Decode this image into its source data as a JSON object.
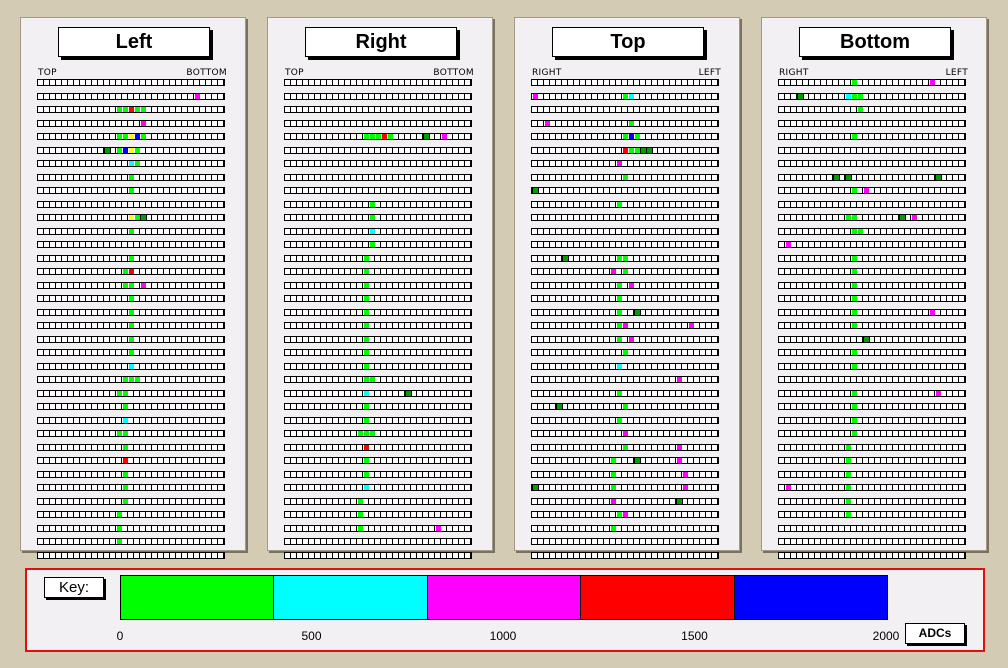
{
  "panels": [
    {
      "title": "Left",
      "label_left": "TOP",
      "label_right": "BOTTOM",
      "hits": [
        [],
        [
          [
            26,
            "m"
          ]
        ],
        [
          [
            13,
            "g"
          ],
          [
            14,
            "g"
          ],
          [
            15,
            "r"
          ],
          [
            16,
            "g"
          ],
          [
            17,
            "g"
          ]
        ],
        [
          [
            17,
            "m"
          ]
        ],
        [
          [
            13,
            "g"
          ],
          [
            14,
            "g"
          ],
          [
            15,
            "y"
          ],
          [
            16,
            "b"
          ],
          [
            17,
            "g"
          ]
        ],
        [
          [
            11,
            "G"
          ],
          [
            13,
            "g"
          ],
          [
            14,
            "b"
          ],
          [
            15,
            "y"
          ],
          [
            16,
            "g"
          ]
        ],
        [
          [
            15,
            "c"
          ],
          [
            16,
            "g"
          ]
        ],
        [
          [
            15,
            "g"
          ]
        ],
        [
          [
            15,
            "g"
          ]
        ],
        [],
        [
          [
            15,
            "y"
          ],
          [
            16,
            "g"
          ],
          [
            17,
            "G"
          ]
        ],
        [
          [
            15,
            "g"
          ]
        ],
        [],
        [
          [
            15,
            "g"
          ]
        ],
        [
          [
            14,
            "g"
          ],
          [
            15,
            "r"
          ]
        ],
        [
          [
            14,
            "g"
          ],
          [
            15,
            "g"
          ],
          [
            17,
            "m"
          ]
        ],
        [
          [
            15,
            "g"
          ]
        ],
        [
          [
            15,
            "g"
          ]
        ],
        [
          [
            15,
            "g"
          ]
        ],
        [
          [
            15,
            "g"
          ]
        ],
        [
          [
            15,
            "g"
          ]
        ],
        [
          [
            15,
            "c"
          ]
        ],
        [
          [
            14,
            "g"
          ],
          [
            15,
            "g"
          ],
          [
            16,
            "g"
          ]
        ],
        [
          [
            13,
            "g"
          ],
          [
            14,
            "g"
          ]
        ],
        [
          [
            14,
            "g"
          ]
        ],
        [
          [
            14,
            "c"
          ]
        ],
        [
          [
            13,
            "g"
          ],
          [
            14,
            "g"
          ]
        ],
        [
          [
            14,
            "g"
          ]
        ],
        [
          [
            14,
            "r"
          ]
        ],
        [
          [
            14,
            "g"
          ]
        ],
        [
          [
            14,
            "g"
          ]
        ],
        [
          [
            14,
            "g"
          ]
        ],
        [
          [
            13,
            "g"
          ]
        ],
        [
          [
            13,
            "g"
          ]
        ],
        [
          [
            13,
            "g"
          ]
        ],
        []
      ]
    },
    {
      "title": "Right",
      "label_left": "TOP",
      "label_right": "BOTTOM",
      "hits": [
        [],
        [],
        [],
        [],
        [
          [
            13,
            "g"
          ],
          [
            14,
            "g"
          ],
          [
            15,
            "g"
          ],
          [
            16,
            "r"
          ],
          [
            17,
            "g"
          ],
          [
            23,
            "G"
          ],
          [
            26,
            "m"
          ]
        ],
        [],
        [],
        [],
        [],
        [
          [
            14,
            "g"
          ]
        ],
        [
          [
            14,
            "g"
          ]
        ],
        [
          [
            14,
            "c"
          ]
        ],
        [
          [
            14,
            "g"
          ]
        ],
        [
          [
            13,
            "g"
          ]
        ],
        [
          [
            13,
            "g"
          ]
        ],
        [
          [
            13,
            "g"
          ]
        ],
        [
          [
            13,
            "g"
          ]
        ],
        [
          [
            13,
            "g"
          ]
        ],
        [
          [
            13,
            "g"
          ]
        ],
        [
          [
            13,
            "g"
          ]
        ],
        [
          [
            13,
            "g"
          ]
        ],
        [
          [
            13,
            "g"
          ]
        ],
        [
          [
            13,
            "g"
          ],
          [
            14,
            "g"
          ]
        ],
        [
          [
            13,
            "c"
          ],
          [
            20,
            "G"
          ]
        ],
        [
          [
            13,
            "g"
          ]
        ],
        [
          [
            13,
            "g"
          ]
        ],
        [
          [
            12,
            "g"
          ],
          [
            13,
            "g"
          ],
          [
            14,
            "g"
          ]
        ],
        [
          [
            13,
            "r"
          ]
        ],
        [
          [
            13,
            "g"
          ]
        ],
        [
          [
            13,
            "g"
          ]
        ],
        [
          [
            13,
            "c"
          ]
        ],
        [
          [
            12,
            "g"
          ]
        ],
        [
          [
            12,
            "g"
          ]
        ],
        [
          [
            12,
            "g"
          ],
          [
            25,
            "m"
          ]
        ],
        [],
        []
      ]
    },
    {
      "title": "Top",
      "label_left": "RIGHT",
      "label_right": "LEFT",
      "hits": [
        [],
        [
          [
            0,
            "m"
          ],
          [
            16,
            "c"
          ],
          [
            15,
            "g"
          ]
        ],
        [],
        [
          [
            2,
            "m"
          ],
          [
            16,
            "g"
          ]
        ],
        [
          [
            15,
            "g"
          ],
          [
            16,
            "b"
          ],
          [
            17,
            "g"
          ]
        ],
        [
          [
            15,
            "r"
          ],
          [
            16,
            "g"
          ],
          [
            17,
            "g"
          ],
          [
            18,
            "G"
          ],
          [
            19,
            "G"
          ]
        ],
        [
          [
            14,
            "m"
          ]
        ],
        [
          [
            15,
            "g"
          ]
        ],
        [
          [
            0,
            "G"
          ]
        ],
        [
          [
            14,
            "g"
          ]
        ],
        [],
        [],
        [],
        [
          [
            5,
            "G"
          ],
          [
            14,
            "g"
          ],
          [
            15,
            "g"
          ]
        ],
        [
          [
            13,
            "m"
          ],
          [
            15,
            "g"
          ]
        ],
        [
          [
            14,
            "g"
          ],
          [
            16,
            "m"
          ]
        ],
        [
          [
            14,
            "g"
          ]
        ],
        [
          [
            14,
            "g"
          ],
          [
            17,
            "G"
          ]
        ],
        [
          [
            14,
            "g"
          ],
          [
            15,
            "m"
          ],
          [
            26,
            "m"
          ]
        ],
        [
          [
            14,
            "g"
          ],
          [
            16,
            "m"
          ]
        ],
        [
          [
            15,
            "g"
          ]
        ],
        [
          [
            14,
            "c"
          ]
        ],
        [
          [
            24,
            "m"
          ]
        ],
        [
          [
            14,
            "g"
          ]
        ],
        [
          [
            4,
            "G"
          ],
          [
            15,
            "g"
          ]
        ],
        [
          [
            14,
            "g"
          ]
        ],
        [
          [
            15,
            "m"
          ]
        ],
        [
          [
            15,
            "g"
          ],
          [
            24,
            "m"
          ]
        ],
        [
          [
            13,
            "g"
          ],
          [
            17,
            "G"
          ],
          [
            24,
            "m"
          ]
        ],
        [
          [
            13,
            "g"
          ],
          [
            25,
            "m"
          ]
        ],
        [
          [
            0,
            "G"
          ],
          [
            13,
            "g"
          ],
          [
            25,
            "m"
          ]
        ],
        [
          [
            13,
            "m"
          ],
          [
            24,
            "G"
          ]
        ],
        [
          [
            14,
            "g"
          ],
          [
            15,
            "m"
          ]
        ],
        [
          [
            13,
            "g"
          ]
        ],
        [],
        []
      ]
    },
    {
      "title": "Bottom",
      "label_left": "RIGHT",
      "label_right": "LEFT",
      "hits": [
        [
          [
            12,
            "g"
          ],
          [
            25,
            "m"
          ]
        ],
        [
          [
            3,
            "G"
          ],
          [
            11,
            "c"
          ],
          [
            12,
            "g"
          ],
          [
            13,
            "g"
          ]
        ],
        [
          [
            13,
            "g"
          ]
        ],
        [],
        [
          [
            12,
            "g"
          ]
        ],
        [],
        [],
        [
          [
            9,
            "G"
          ],
          [
            11,
            "G"
          ],
          [
            26,
            "G"
          ]
        ],
        [
          [
            12,
            "g"
          ],
          [
            14,
            "m"
          ]
        ],
        [],
        [
          [
            11,
            "g"
          ],
          [
            12,
            "g"
          ],
          [
            20,
            "G"
          ],
          [
            22,
            "m"
          ]
        ],
        [
          [
            12,
            "g"
          ],
          [
            13,
            "g"
          ]
        ],
        [
          [
            1,
            "m"
          ]
        ],
        [
          [
            12,
            "g"
          ]
        ],
        [
          [
            12,
            "g"
          ]
        ],
        [
          [
            12,
            "g"
          ]
        ],
        [
          [
            12,
            "g"
          ]
        ],
        [
          [
            12,
            "g"
          ],
          [
            25,
            "m"
          ]
        ],
        [
          [
            12,
            "g"
          ]
        ],
        [
          [
            14,
            "G"
          ]
        ],
        [
          [
            12,
            "g"
          ]
        ],
        [
          [
            12,
            "g"
          ]
        ],
        [],
        [
          [
            12,
            "g"
          ],
          [
            26,
            "m"
          ]
        ],
        [
          [
            12,
            "g"
          ]
        ],
        [
          [
            12,
            "g"
          ]
        ],
        [
          [
            12,
            "g"
          ]
        ],
        [
          [
            11,
            "g"
          ]
        ],
        [
          [
            11,
            "g"
          ]
        ],
        [
          [
            11,
            "g"
          ]
        ],
        [
          [
            1,
            "m"
          ],
          [
            11,
            "g"
          ]
        ],
        [
          [
            11,
            "g"
          ]
        ],
        [
          [
            11,
            "g"
          ]
        ],
        [],
        [],
        []
      ]
    }
  ],
  "key": {
    "label": "Key:",
    "button": "ADCs",
    "colors": [
      "#00ff00",
      "#00ffff",
      "#ff00ff",
      "#ff0000",
      "#0000ff"
    ],
    "ticks": [
      "0",
      "500",
      "1000",
      "1500",
      "2000"
    ],
    "tick_values": [
      0,
      500,
      1000,
      1500,
      2000
    ],
    "max": 2000
  },
  "hit_colors": {
    "g": "#00ff00",
    "c": "#00ffff",
    "m": "#ff00ff",
    "r": "#ff0000",
    "b": "#0000ff",
    "y": "#ffff00",
    "G": "#00a000"
  }
}
